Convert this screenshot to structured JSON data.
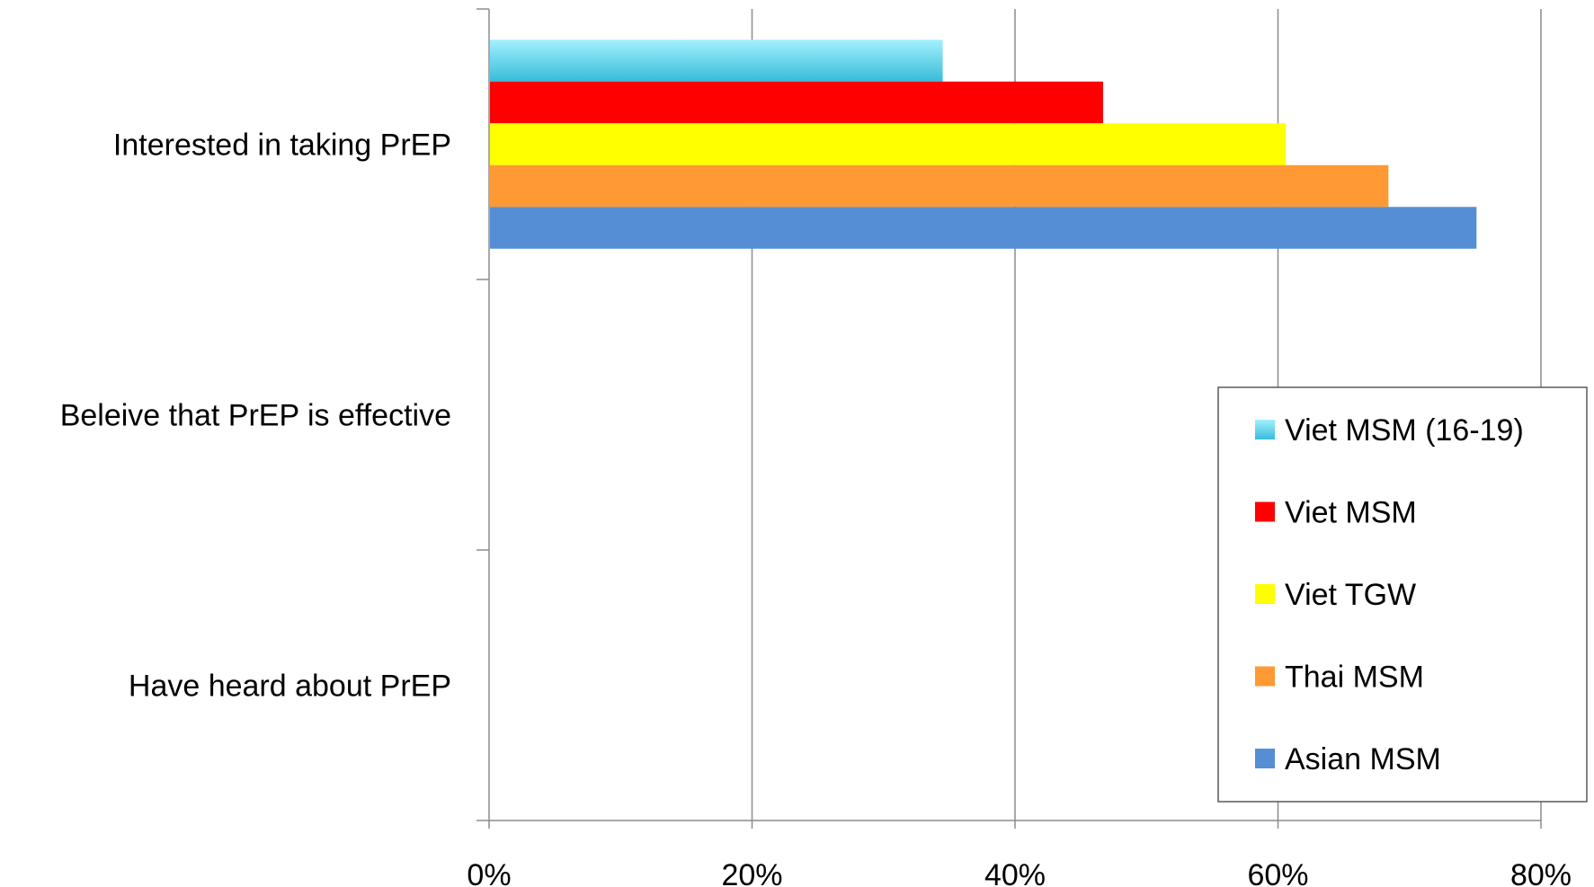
{
  "chart_data": {
    "type": "bar",
    "orientation": "horizontal",
    "categories": [
      "Interested in taking PrEP",
      "Beleive that PrEP is effective",
      "Have heard about PrEP"
    ],
    "series": [
      {
        "name": "Viet MSM (16-19)",
        "color": "#4dcfe8",
        "values": [
          34.5,
          null,
          null
        ]
      },
      {
        "name": "Viet MSM",
        "color": "#ff0000",
        "values": [
          46.7,
          null,
          null
        ]
      },
      {
        "name": "Viet TGW",
        "color": "#ffff00",
        "values": [
          60.6,
          null,
          null
        ]
      },
      {
        "name": "Thai MSM",
        "color": "#ff9933",
        "values": [
          68.4,
          null,
          null
        ]
      },
      {
        "name": "Asian MSM",
        "color": "#558ed5",
        "values": [
          75.1,
          null,
          null
        ]
      }
    ],
    "x_ticks": [
      "0%",
      "20%",
      "40%",
      "60%",
      "80%"
    ],
    "xlim": [
      0,
      80
    ],
    "grid": "vertical",
    "legend": "bottom-right"
  }
}
